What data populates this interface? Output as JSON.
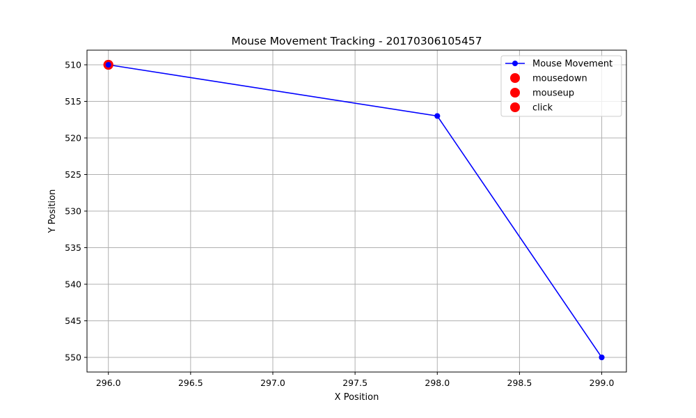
{
  "chart_data": {
    "type": "line",
    "title": "Mouse Movement Tracking - 20170306105457",
    "xlabel": "X Position",
    "ylabel": "Y Position",
    "xlim": [
      295.87,
      299.15
    ],
    "ylim": [
      508.0,
      552.0
    ],
    "y_inverted": true,
    "grid": true,
    "legend_placement": "top-right",
    "x_ticks": [
      296.0,
      296.5,
      297.0,
      297.5,
      298.0,
      298.5,
      299.0
    ],
    "x_tick_labels": [
      "296.0",
      "296.5",
      "297.0",
      "297.5",
      "298.0",
      "298.5",
      "299.0"
    ],
    "y_ticks": [
      510,
      515,
      520,
      525,
      530,
      535,
      540,
      545,
      550
    ],
    "y_tick_labels": [
      "510",
      "515",
      "520",
      "525",
      "530",
      "535",
      "540",
      "545",
      "550"
    ],
    "series": [
      {
        "name": "Mouse Movement",
        "kind": "line",
        "color": "#0000ff",
        "x": [
          296,
          298,
          299
        ],
        "y": [
          510,
          517,
          550
        ]
      },
      {
        "name": "mousedown",
        "kind": "scatter",
        "color": "#ff0000",
        "x": [
          296
        ],
        "y": [
          510
        ]
      },
      {
        "name": "mouseup",
        "kind": "scatter",
        "color": "#ff0000",
        "x": [
          296
        ],
        "y": [
          510
        ]
      },
      {
        "name": "click",
        "kind": "scatter",
        "color": "#ff0000",
        "x": [
          296
        ],
        "y": [
          510
        ]
      }
    ]
  }
}
